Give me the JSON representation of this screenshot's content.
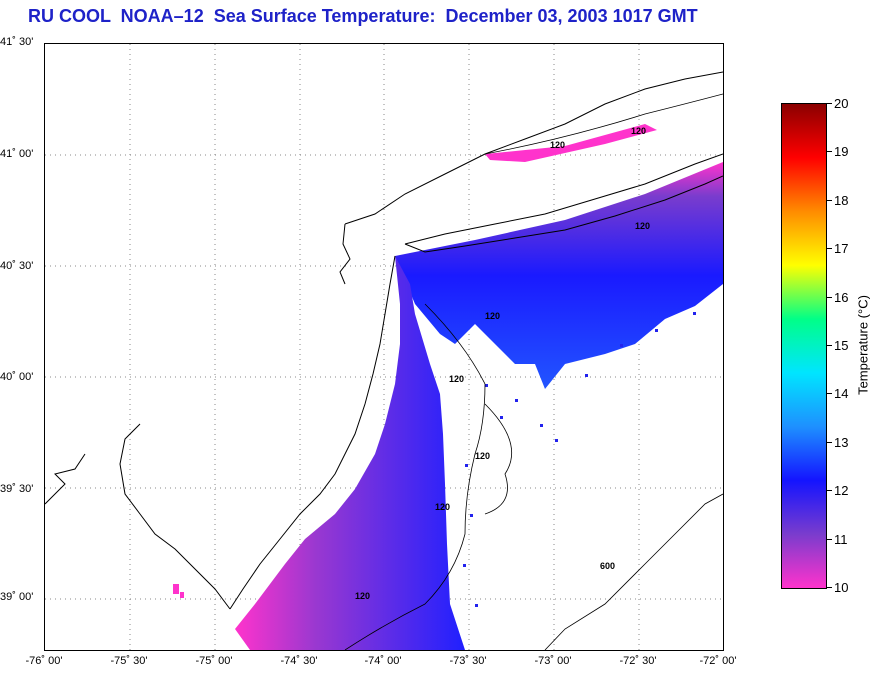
{
  "title": "RU COOL  NOAA–12  Sea Surface Temperature:  December 03, 2003 1017 GMT",
  "latitude_labels": [
    "41˚ 30'",
    "41˚ 00'",
    "40˚ 30'",
    "40˚ 00'",
    "39˚ 30'",
    "39˚ 00'"
  ],
  "longitude_labels": [
    "-76˚ 00'",
    "-75˚ 30'",
    "-75˚ 00'",
    "-74˚ 30'",
    "-74˚ 00'",
    "-73˚ 30'",
    "-73˚ 00'",
    "-72˚ 30'",
    "-72˚ 00'"
  ],
  "contour_labels": [
    "120",
    "120",
    "120",
    "120",
    "120",
    "120",
    "120",
    "120",
    "600"
  ],
  "colorbar": {
    "title": "Temperature (°C)",
    "ticks": [
      "20",
      "19",
      "18",
      "17",
      "16",
      "15",
      "14",
      "13",
      "12",
      "11",
      "10"
    ],
    "range": [
      10,
      20
    ],
    "colors": [
      "#ff33cc",
      "#7a3ccd",
      "#1414ff",
      "#1e90ff",
      "#00e5ff",
      "#00ff88",
      "#ffff00",
      "#ff8c00",
      "#ff0000",
      "#8b0000"
    ]
  },
  "colors": {
    "title": "#1e22c8",
    "land_outline": "#000000",
    "grid": "#888888"
  }
}
